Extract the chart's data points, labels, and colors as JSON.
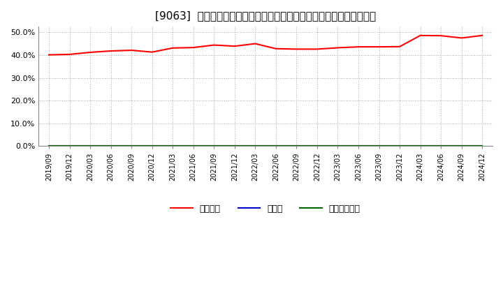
{
  "title": "[9063]  自己資本、のれん、繰延税金資産の総資産に対する比率の推移",
  "x_labels": [
    "2019/09",
    "2019/12",
    "2020/03",
    "2020/06",
    "2020/09",
    "2020/12",
    "2021/03",
    "2021/06",
    "2021/09",
    "2021/12",
    "2022/03",
    "2022/06",
    "2022/09",
    "2022/12",
    "2023/03",
    "2023/06",
    "2023/09",
    "2023/12",
    "2024/03",
    "2024/06",
    "2024/09",
    "2024/12"
  ],
  "equity_ratio": [
    40.1,
    40.3,
    41.2,
    41.8,
    42.1,
    41.3,
    43.1,
    43.3,
    44.4,
    43.9,
    45.0,
    42.8,
    42.6,
    42.6,
    43.2,
    43.6,
    43.6,
    43.7,
    48.6,
    48.5,
    47.5,
    48.6
  ],
  "noren_ratio": [
    0,
    0,
    0,
    0,
    0,
    0,
    0,
    0,
    0,
    0,
    0,
    0,
    0,
    0,
    0,
    0,
    0,
    0,
    0,
    0,
    0,
    0
  ],
  "deferred_tax_ratio": [
    0,
    0,
    0,
    0,
    0,
    0,
    0,
    0,
    0,
    0,
    0,
    0,
    0,
    0,
    0,
    0,
    0,
    0,
    0,
    0,
    0,
    0
  ],
  "equity_color": "#ff0000",
  "noren_color": "#0000cc",
  "deferred_color": "#006600",
  "bg_color": "#ffffff",
  "plot_bg_color": "#ffffff",
  "grid_color": "#aaaaaa",
  "ylim": [
    0,
    52.5
  ],
  "yticks": [
    0,
    10,
    20,
    30,
    40,
    50
  ],
  "ytick_labels": [
    "0.0%",
    "10.0%",
    "20.0%",
    "30.0%",
    "40.0%",
    "50.0%"
  ],
  "legend_labels": [
    "自己資本",
    "のれん",
    "繰延税金資産"
  ],
  "title_fontsize": 11
}
